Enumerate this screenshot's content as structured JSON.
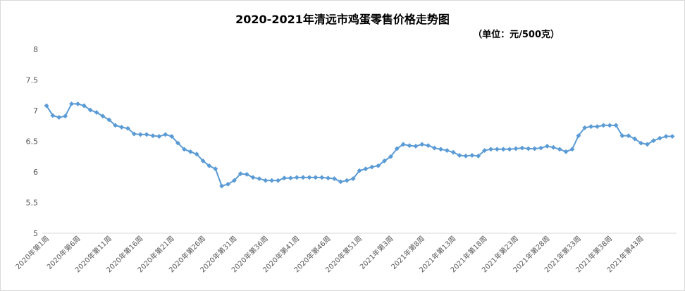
{
  "chart_data": {
    "type": "line",
    "title": "2020-2021年清远市鸡蛋零售价格走势图",
    "subtitle": "（单位：元/500克）",
    "xlabel": "",
    "ylabel": "",
    "ylim": [
      5,
      8
    ],
    "yticks": [
      "5",
      "5.5",
      "6",
      "6.5",
      "7",
      "7.5",
      "8"
    ],
    "grid": false,
    "legend": "none",
    "line_color": "#5B9BD5",
    "marker": "diamond",
    "x_tick_labels": [
      "2020年第1周",
      "2020年第6周",
      "2020年第11周",
      "2020年第16周",
      "2020年第21周",
      "2020年第26周",
      "2020年第31周",
      "2020年第36周",
      "2020年第41周",
      "2020年第46周",
      "2020年第51周",
      "2021年第3周",
      "2021年第8周",
      "2021年第13周",
      "2021年第18周",
      "2021年第23周",
      "2021年第28周",
      "2021年第33周",
      "2021年第38周",
      "2021年第43周"
    ],
    "series": [
      {
        "values": [
          7.08,
          6.92,
          6.89,
          6.91,
          7.11,
          7.11,
          7.08,
          7.01,
          6.97,
          6.91,
          6.85,
          6.76,
          6.73,
          6.71,
          6.62,
          6.61,
          6.61,
          6.59,
          6.58,
          6.61,
          6.58,
          6.47,
          6.37,
          6.33,
          6.29,
          6.18,
          6.1,
          6.05,
          5.77,
          5.8,
          5.86,
          5.97,
          5.96,
          5.91,
          5.89,
          5.86,
          5.86,
          5.86,
          5.9,
          5.9,
          5.91,
          5.91,
          5.91,
          5.91,
          5.91,
          5.9,
          5.89,
          5.84,
          5.86,
          5.89,
          6.02,
          6.05,
          6.08,
          6.1,
          6.18,
          6.25,
          6.38,
          6.45,
          6.43,
          6.42,
          6.45,
          6.43,
          6.39,
          6.37,
          6.35,
          6.32,
          6.27,
          6.26,
          6.27,
          6.26,
          6.35,
          6.37,
          6.37,
          6.37,
          6.37,
          6.38,
          6.39,
          6.38,
          6.38,
          6.39,
          6.42,
          6.4,
          6.37,
          6.33,
          6.37,
          6.59,
          6.72,
          6.74,
          6.74,
          6.76,
          6.76,
          6.76,
          6.59,
          6.59,
          6.54,
          6.47,
          6.45,
          6.51,
          6.55,
          6.58,
          6.58
        ]
      }
    ]
  }
}
